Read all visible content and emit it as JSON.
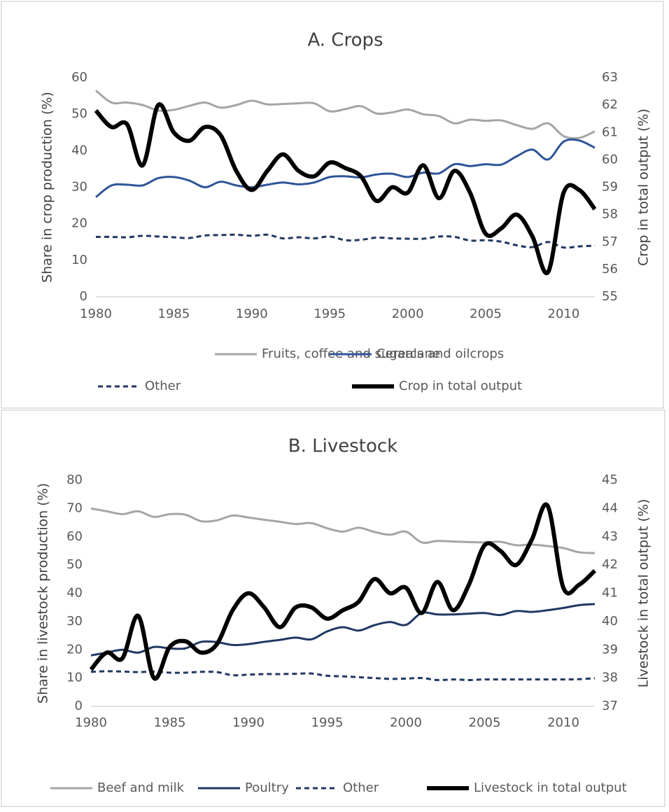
{
  "chart_data": [
    {
      "type": "line",
      "title": "A. Crops",
      "y_label": "Share in crop production (%)",
      "y2_label": "Crop in total output (%)",
      "x": [
        1980,
        1981,
        1982,
        1983,
        1984,
        1985,
        1986,
        1987,
        1988,
        1989,
        1990,
        1991,
        1992,
        1993,
        1994,
        1995,
        1996,
        1997,
        1998,
        1999,
        2000,
        2001,
        2002,
        2003,
        2004,
        2005,
        2006,
        2007,
        2008,
        2009,
        2010,
        2011,
        2012
      ],
      "xlim": [
        1980,
        2012
      ],
      "xticks": [
        1980,
        1985,
        1990,
        1995,
        2000,
        2005,
        2010
      ],
      "ylim": [
        0,
        60
      ],
      "yticks": [
        0,
        10,
        20,
        30,
        40,
        50,
        60
      ],
      "y2lim": [
        55,
        63
      ],
      "y2ticks": [
        55,
        56,
        57,
        58,
        59,
        60,
        61,
        62,
        63
      ],
      "smooth": true,
      "series": [
        {
          "name": "Fruits, coffee and sugarcane",
          "color": "#a5a5a5",
          "line_width": 3,
          "dashed": false,
          "axis": "y",
          "values": [
            56.5,
            53.2,
            53.2,
            52.5,
            51,
            51.2,
            52.3,
            53.2,
            51.8,
            52.5,
            53.7,
            52.7,
            52.8,
            53,
            53,
            50.8,
            51.4,
            52.2,
            50.2,
            50.5,
            51.3,
            50,
            49.5,
            47.5,
            48.5,
            48.2,
            48.3,
            47,
            46,
            47.5,
            44,
            43.5,
            45.3
          ]
        },
        {
          "name": "Cereals and oilcrops",
          "color": "#2f5597",
          "line_width": 3,
          "dashed": false,
          "axis": "y",
          "values": [
            27.3,
            30.5,
            30.7,
            30.5,
            32.5,
            32.8,
            31.8,
            30,
            31.5,
            30.5,
            30,
            30.7,
            31.3,
            30.8,
            31.3,
            32.8,
            33,
            32.7,
            33.5,
            33.7,
            32.8,
            34,
            33.8,
            36.3,
            35.8,
            36.3,
            36.2,
            38.5,
            40.3,
            37.6,
            42.5,
            42.8,
            40.8
          ]
        },
        {
          "name": "Other",
          "color": "#203864",
          "line_width": 3,
          "dashed": true,
          "axis": "y",
          "values": [
            16.4,
            16.4,
            16.3,
            16.7,
            16.5,
            16.3,
            16.1,
            16.8,
            16.9,
            17,
            16.7,
            17,
            16,
            16.3,
            16,
            16.5,
            15.5,
            15.6,
            16.2,
            16,
            15.9,
            15.9,
            16.5,
            16.4,
            15.4,
            15.5,
            15.1,
            14.1,
            13.6,
            15,
            13.5,
            13.8,
            14
          ]
        },
        {
          "name": "Crop in total output",
          "color": "#000000",
          "line_width": 6,
          "dashed": false,
          "axis": "y2",
          "values": [
            61.8,
            61.2,
            61.3,
            59.8,
            62,
            61,
            60.7,
            61.2,
            60.9,
            59.6,
            58.9,
            59.6,
            60.2,
            59.6,
            59.4,
            59.9,
            59.7,
            59.4,
            58.5,
            59,
            58.8,
            59.8,
            58.6,
            59.6,
            58.8,
            57.3,
            57.5,
            58,
            57.2,
            55.9,
            58.8,
            58.9,
            58.2
          ]
        }
      ]
    },
    {
      "type": "line",
      "title": "B. Livestock",
      "y_label": "Share in livestock production (%)",
      "y2_label": "Livestock in total output (%)",
      "x": [
        1980,
        1981,
        1982,
        1983,
        1984,
        1985,
        1986,
        1987,
        1988,
        1989,
        1990,
        1991,
        1992,
        1993,
        1994,
        1995,
        1996,
        1997,
        1998,
        1999,
        2000,
        2001,
        2002,
        2003,
        2004,
        2005,
        2006,
        2007,
        2008,
        2009,
        2010,
        2011,
        2012
      ],
      "xlim": [
        1980,
        2012
      ],
      "xticks": [
        1980,
        1985,
        1990,
        1995,
        2000,
        2005,
        2010
      ],
      "ylim": [
        0,
        80
      ],
      "yticks": [
        0,
        10,
        20,
        30,
        40,
        50,
        60,
        70,
        80
      ],
      "y2lim": [
        37,
        45
      ],
      "y2ticks": [
        37,
        38,
        39,
        40,
        41,
        42,
        43,
        44,
        45
      ],
      "smooth": true,
      "series": [
        {
          "name": "Beef and milk",
          "color": "#a5a5a5",
          "line_width": 3,
          "dashed": false,
          "axis": "y",
          "values": [
            70,
            69,
            68,
            69,
            67,
            68,
            67.8,
            65.5,
            65.8,
            67.5,
            66.8,
            66,
            65.3,
            64.5,
            64.8,
            63,
            61.8,
            63.2,
            61.7,
            60.7,
            61.8,
            58,
            58.5,
            58.3,
            58.1,
            58,
            58.2,
            57,
            57.2,
            56.7,
            56,
            54.5,
            54.2
          ]
        },
        {
          "name": "Poultry",
          "color": "#203864",
          "line_width": 3,
          "dashed": false,
          "axis": "y",
          "values": [
            18,
            19,
            20,
            19,
            21,
            20.5,
            20.5,
            22.8,
            22.7,
            21.7,
            22,
            22.8,
            23.5,
            24.3,
            23.7,
            26.5,
            28,
            26.8,
            28.7,
            29.8,
            28.8,
            33,
            32.5,
            32.5,
            32.8,
            33,
            32.3,
            33.7,
            33.4,
            34,
            34.8,
            35.8,
            36.2
          ]
        },
        {
          "name": "Other",
          "color": "#203864",
          "line_width": 3,
          "dashed": true,
          "axis": "y",
          "values": [
            12.2,
            12.4,
            12.3,
            12.1,
            12.3,
            11.9,
            11.9,
            12.2,
            12.1,
            11,
            11.2,
            11.4,
            11.4,
            11.5,
            11.6,
            10.8,
            10.6,
            10.3,
            10,
            9.7,
            9.8,
            10,
            9.3,
            9.5,
            9.3,
            9.5,
            9.5,
            9.5,
            9.5,
            9.5,
            9.5,
            9.6,
            9.9
          ]
        },
        {
          "name": "Livestock in total output",
          "color": "#000000",
          "line_width": 6,
          "dashed": false,
          "axis": "y2",
          "values": [
            38.3,
            38.9,
            38.7,
            40.2,
            38.0,
            39.1,
            39.3,
            38.9,
            39.2,
            40.4,
            41.0,
            40.5,
            39.8,
            40.5,
            40.5,
            40.1,
            40.4,
            40.7,
            41.5,
            41.0,
            41.2,
            40.3,
            41.4,
            40.4,
            41.3,
            42.7,
            42.5,
            42,
            42.9,
            44.1,
            41.2,
            41.3,
            41.8
          ]
        }
      ]
    }
  ]
}
